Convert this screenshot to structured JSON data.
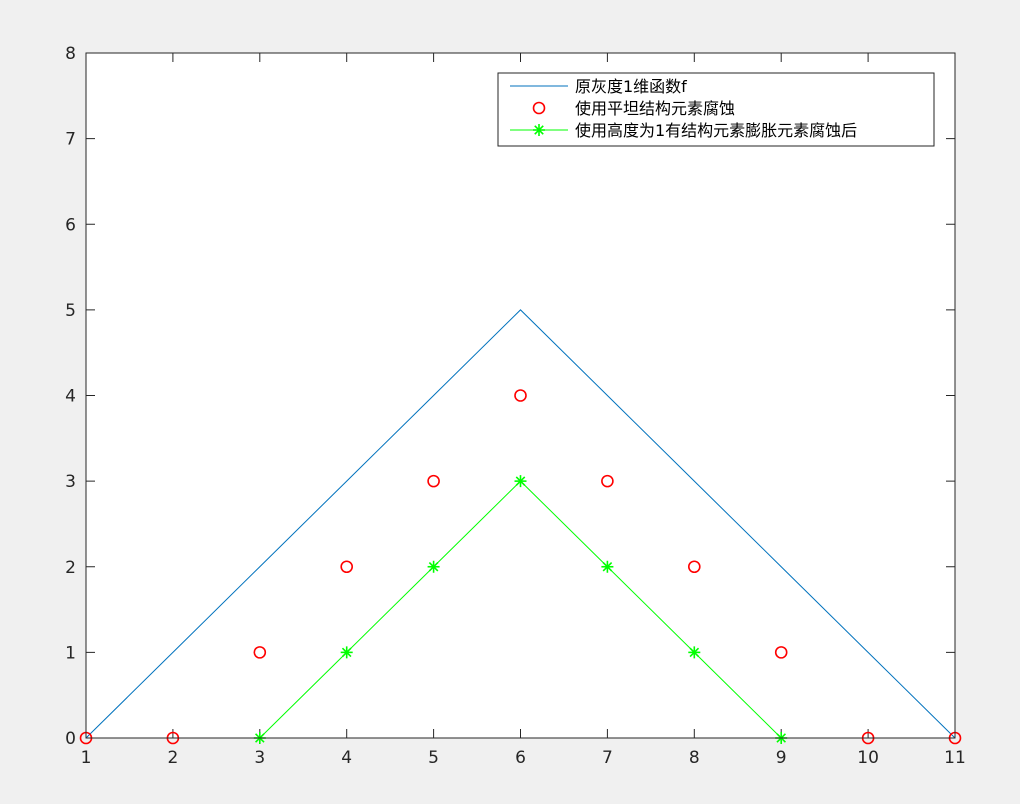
{
  "chart_data": {
    "type": "line",
    "title": "",
    "xlabel": "",
    "ylabel": "",
    "xlim": [
      1,
      11
    ],
    "ylim": [
      0,
      8
    ],
    "xticks": [
      1,
      2,
      3,
      4,
      5,
      6,
      7,
      8,
      9,
      10,
      11
    ],
    "yticks": [
      0,
      1,
      2,
      3,
      4,
      5,
      6,
      7,
      8
    ],
    "grid": false,
    "legend_position": "top-right",
    "series": [
      {
        "name": "原灰度1维函数f",
        "style": "line",
        "color": "#0072bd",
        "x": [
          1,
          2,
          3,
          4,
          5,
          6,
          7,
          8,
          9,
          10,
          11
        ],
        "y": [
          0,
          1,
          2,
          3,
          4,
          5,
          4,
          3,
          2,
          1,
          0
        ]
      },
      {
        "name": "使用平坦结构元素腐蚀",
        "style": "marker-circle",
        "color": "#ff0000",
        "x": [
          1,
          2,
          3,
          4,
          5,
          6,
          7,
          8,
          9,
          10,
          11
        ],
        "y": [
          0,
          0,
          1,
          2,
          3,
          4,
          3,
          2,
          1,
          0,
          0
        ]
      },
      {
        "name": "使用高度为1有结构元素膨胀元素腐蚀后",
        "style": "line-marker-star",
        "color": "#00ff00",
        "x": [
          3,
          4,
          5,
          6,
          7,
          8,
          9
        ],
        "y": [
          0,
          1,
          2,
          3,
          2,
          1,
          0
        ]
      }
    ]
  }
}
